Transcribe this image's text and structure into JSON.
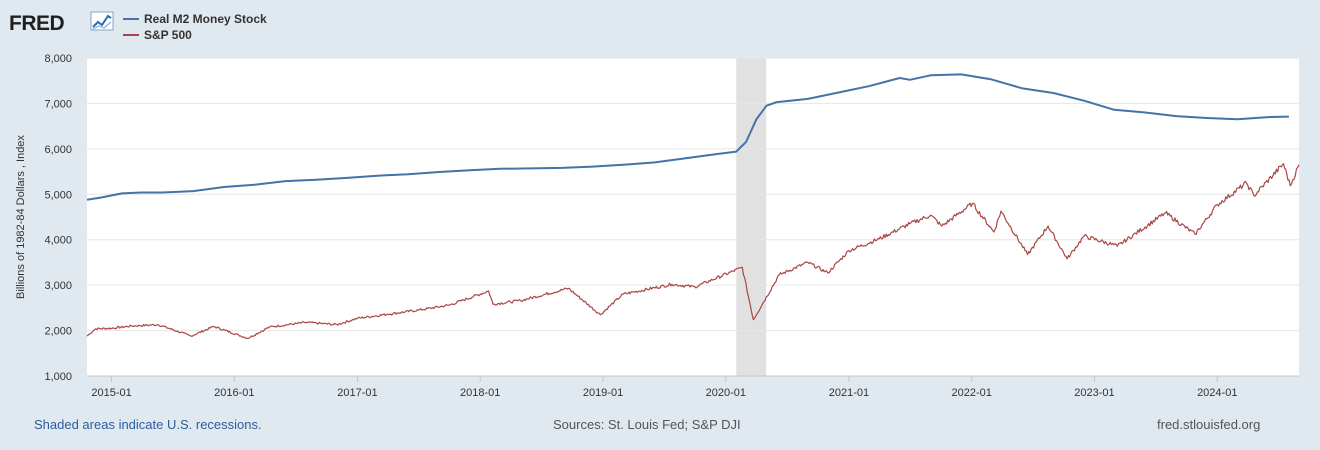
{
  "header": {
    "logo_text": "FRED",
    "legend": [
      {
        "label": "Real M2 Money Stock",
        "color": "#4572a7"
      },
      {
        "label": "S&P 500",
        "color": "#aa4643"
      }
    ]
  },
  "footer": {
    "recession_note": "Shaded areas indicate U.S. recessions.",
    "sources": "Sources: St. Louis Fed; S&P DJI",
    "site": "fred.stlouisfed.org"
  },
  "chart_data": {
    "type": "line",
    "ylabel": "Billions of 1982-84 Dollars , Index",
    "xlabel": "",
    "ylim": [
      1000,
      8000
    ],
    "xlim": [
      "2014-10-20",
      "2024-08-31"
    ],
    "y_ticks": [
      "1,000",
      "2,000",
      "3,000",
      "4,000",
      "5,000",
      "6,000",
      "7,000",
      "8,000"
    ],
    "x_ticks": [
      "2015-01",
      "2016-01",
      "2017-01",
      "2018-01",
      "2019-01",
      "2020-01",
      "2021-01",
      "2022-01",
      "2023-01",
      "2024-01"
    ],
    "grid": true,
    "legend_position": "top-left",
    "recessions": [
      [
        "2020-02-01",
        "2020-04-30"
      ]
    ],
    "series": [
      {
        "name": "Real M2 Money Stock",
        "color": "#4572a7",
        "points": [
          [
            "2014-10-20",
            4880
          ],
          [
            "2014-12-01",
            4930
          ],
          [
            "2015-02-01",
            5020
          ],
          [
            "2015-04-01",
            5040
          ],
          [
            "2015-06-01",
            5040
          ],
          [
            "2015-09-01",
            5070
          ],
          [
            "2015-12-01",
            5160
          ],
          [
            "2016-03-01",
            5210
          ],
          [
            "2016-06-01",
            5290
          ],
          [
            "2016-09-01",
            5320
          ],
          [
            "2016-12-01",
            5360
          ],
          [
            "2017-03-01",
            5410
          ],
          [
            "2017-06-01",
            5440
          ],
          [
            "2017-09-01",
            5490
          ],
          [
            "2017-12-01",
            5530
          ],
          [
            "2018-03-01",
            5560
          ],
          [
            "2018-06-01",
            5570
          ],
          [
            "2018-09-01",
            5580
          ],
          [
            "2018-12-01",
            5610
          ],
          [
            "2019-03-01",
            5650
          ],
          [
            "2019-06-01",
            5700
          ],
          [
            "2019-09-01",
            5790
          ],
          [
            "2019-12-01",
            5880
          ],
          [
            "2020-02-01",
            5940
          ],
          [
            "2020-03-01",
            6150
          ],
          [
            "2020-04-01",
            6650
          ],
          [
            "2020-05-01",
            6950
          ],
          [
            "2020-06-01",
            7030
          ],
          [
            "2020-09-01",
            7100
          ],
          [
            "2020-12-01",
            7240
          ],
          [
            "2021-03-01",
            7380
          ],
          [
            "2021-06-01",
            7560
          ],
          [
            "2021-07-01",
            7520
          ],
          [
            "2021-09-01",
            7620
          ],
          [
            "2021-12-01",
            7640
          ],
          [
            "2022-03-01",
            7530
          ],
          [
            "2022-06-01",
            7330
          ],
          [
            "2022-09-01",
            7230
          ],
          [
            "2022-12-01",
            7060
          ],
          [
            "2023-03-01",
            6860
          ],
          [
            "2023-06-01",
            6800
          ],
          [
            "2023-09-01",
            6720
          ],
          [
            "2023-12-01",
            6680
          ],
          [
            "2024-03-01",
            6650
          ],
          [
            "2024-06-01",
            6700
          ],
          [
            "2024-08-01",
            6710
          ]
        ]
      },
      {
        "name": "S&P 500",
        "color": "#aa4643",
        "points": [
          [
            "2014-10-20",
            1880
          ],
          [
            "2014-11-15",
            2040
          ],
          [
            "2015-01-01",
            2050
          ],
          [
            "2015-03-01",
            2100
          ],
          [
            "2015-05-20",
            2130
          ],
          [
            "2015-08-25",
            1880
          ],
          [
            "2015-11-01",
            2090
          ],
          [
            "2016-02-10",
            1830
          ],
          [
            "2016-04-15",
            2080
          ],
          [
            "2016-08-01",
            2180
          ],
          [
            "2016-11-01",
            2130
          ],
          [
            "2017-01-01",
            2270
          ],
          [
            "2017-04-01",
            2360
          ],
          [
            "2017-07-01",
            2450
          ],
          [
            "2017-10-01",
            2560
          ],
          [
            "2018-01-26",
            2870
          ],
          [
            "2018-02-08",
            2580
          ],
          [
            "2018-05-01",
            2660
          ],
          [
            "2018-09-20",
            2930
          ],
          [
            "2018-12-24",
            2350
          ],
          [
            "2019-03-01",
            2800
          ],
          [
            "2019-07-25",
            3020
          ],
          [
            "2019-10-01",
            2960
          ],
          [
            "2020-02-19",
            3390
          ],
          [
            "2020-03-23",
            2240
          ],
          [
            "2020-06-08",
            3230
          ],
          [
            "2020-09-01",
            3500
          ],
          [
            "2020-10-30",
            3270
          ],
          [
            "2021-01-01",
            3760
          ],
          [
            "2021-04-01",
            4020
          ],
          [
            "2021-07-01",
            4350
          ],
          [
            "2021-09-01",
            4540
          ],
          [
            "2021-10-04",
            4300
          ],
          [
            "2022-01-03",
            4800
          ],
          [
            "2022-03-08",
            4170
          ],
          [
            "2022-03-29",
            4630
          ],
          [
            "2022-06-16",
            3670
          ],
          [
            "2022-08-16",
            4300
          ],
          [
            "2022-10-12",
            3580
          ],
          [
            "2022-12-01",
            4080
          ],
          [
            "2023-03-10",
            3860
          ],
          [
            "2023-07-31",
            4590
          ],
          [
            "2023-10-27",
            4120
          ],
          [
            "2024-01-01",
            4770
          ],
          [
            "2024-03-28",
            5250
          ],
          [
            "2024-04-19",
            4970
          ],
          [
            "2024-07-16",
            5670
          ],
          [
            "2024-08-05",
            5190
          ],
          [
            "2024-08-31",
            5650
          ]
        ]
      }
    ]
  }
}
